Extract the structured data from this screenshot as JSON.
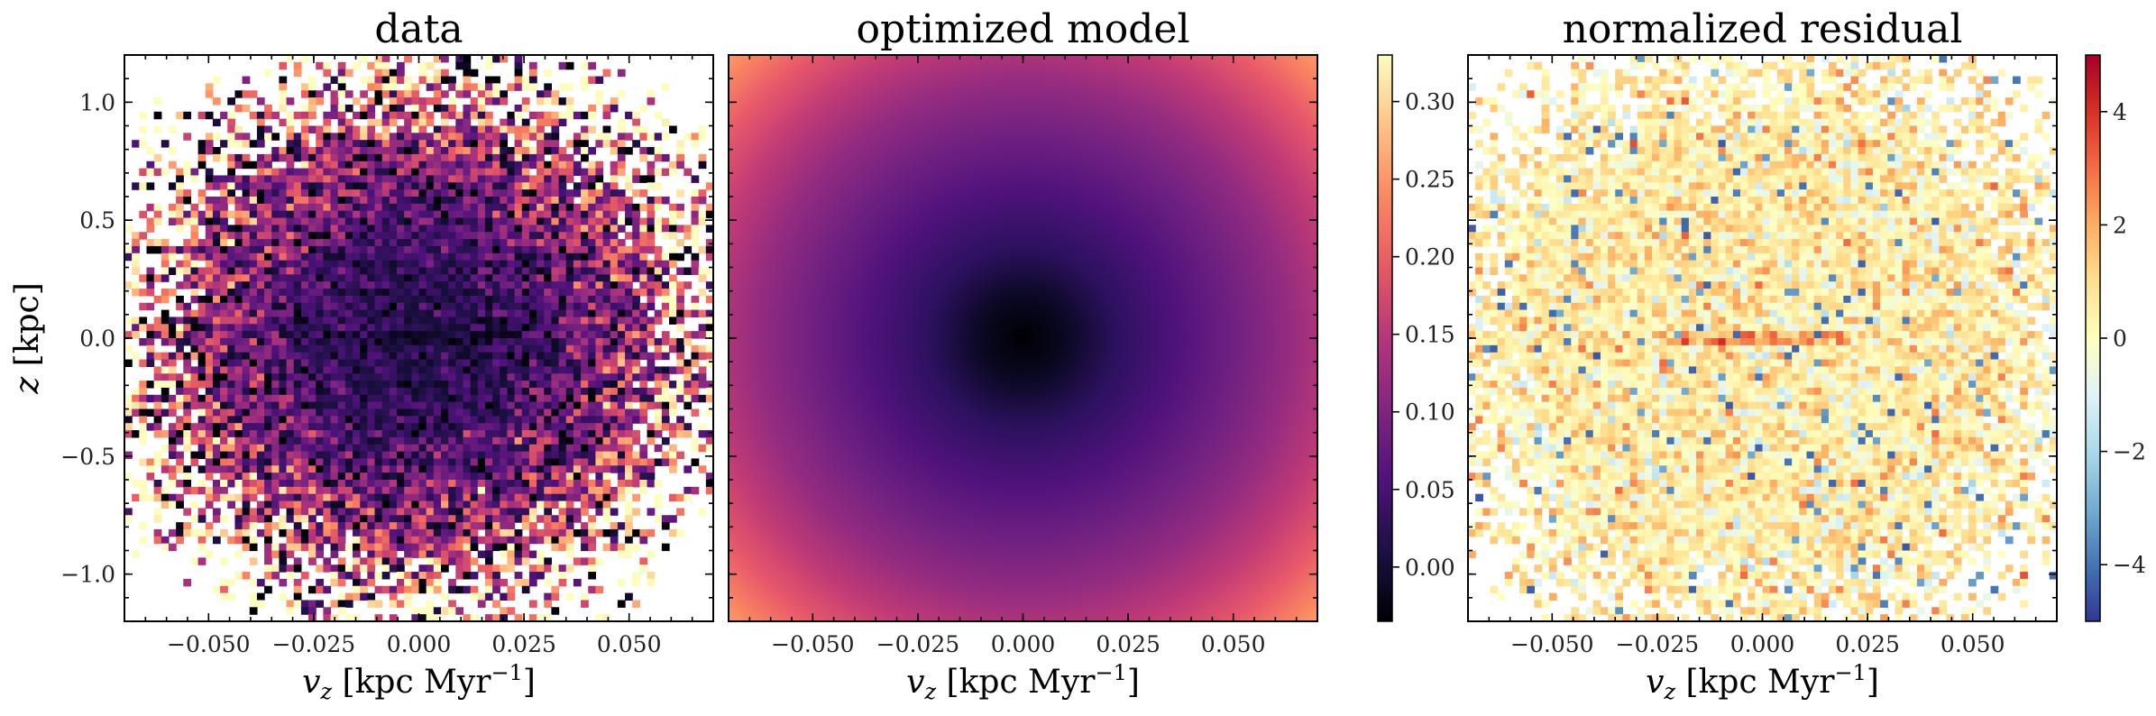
{
  "figure": {
    "panel_titles": [
      "data",
      "optimized model",
      "normalized residual"
    ]
  },
  "chart_data": [
    {
      "type": "heatmap",
      "title": "data",
      "xlabel": "v_z [kpc Myr^-1]",
      "ylabel": "z [kpc]",
      "xlim": [
        -0.07,
        0.07
      ],
      "ylim": [
        -1.2,
        1.2
      ],
      "xticks": [
        -0.05,
        -0.025,
        0.0,
        0.025,
        0.05
      ],
      "xtick_labels": [
        "−0.050",
        "−0.025",
        "0.000",
        "0.025",
        "0.050"
      ],
      "yticks": [
        -1.0,
        -0.5,
        0.0,
        0.5,
        1.0
      ],
      "ytick_labels": [
        "−1.0",
        "−0.5",
        "0.0",
        "0.5",
        "1.0"
      ],
      "colormap": "magma",
      "description_of_values": "noisy binned histogram; dark core near v_z=0, z=0, brightening outward, white empty bins at corners"
    },
    {
      "type": "heatmap",
      "title": "optimized model",
      "xlabel": "v_z [kpc Myr^-1]",
      "xlim": [
        -0.07,
        0.07
      ],
      "ylim": [
        -1.2,
        1.2
      ],
      "xticks": [
        -0.05,
        -0.025,
        0.0,
        0.025,
        0.05
      ],
      "xtick_labels": [
        "−0.050",
        "−0.025",
        "0.000",
        "0.025",
        "0.050"
      ],
      "colormap": "magma",
      "colorbar": {
        "range": [
          -0.035,
          0.33
        ],
        "ticks": [
          0.0,
          0.05,
          0.1,
          0.15,
          0.2,
          0.25,
          0.3
        ],
        "tick_labels": [
          "0.00",
          "0.05",
          "0.10",
          "0.15",
          "0.20",
          "0.25",
          "0.30"
        ]
      }
    },
    {
      "type": "heatmap",
      "title": "normalized residual",
      "xlabel": "v_z [kpc Myr^-1]",
      "xlim": [
        -0.07,
        0.07
      ],
      "ylim": [
        -1.2,
        1.2
      ],
      "xticks": [
        -0.05,
        -0.025,
        0.0,
        0.025,
        0.05
      ],
      "xtick_labels": [
        "−0.050",
        "−0.025",
        "0.000",
        "0.025",
        "0.050"
      ],
      "colormap": "RdYlBu_r",
      "colorbar": {
        "range": [
          -5,
          5
        ],
        "ticks": [
          -4,
          -2,
          0,
          2,
          4
        ],
        "tick_labels": [
          "−4",
          "−2",
          "0",
          "2",
          "4"
        ]
      }
    }
  ],
  "colors": {
    "magma_stops": [
      "#000004",
      "#1c1044",
      "#4f127b",
      "#812581",
      "#b5367a",
      "#e55964",
      "#fb8761",
      "#fec287",
      "#fcfdbf"
    ],
    "rdylbu_stops": [
      "#313695",
      "#4575b4",
      "#74add1",
      "#abd9e9",
      "#e0f3f8",
      "#ffffbf",
      "#fee090",
      "#fdae61",
      "#f46d43",
      "#d73027",
      "#a50026"
    ]
  }
}
